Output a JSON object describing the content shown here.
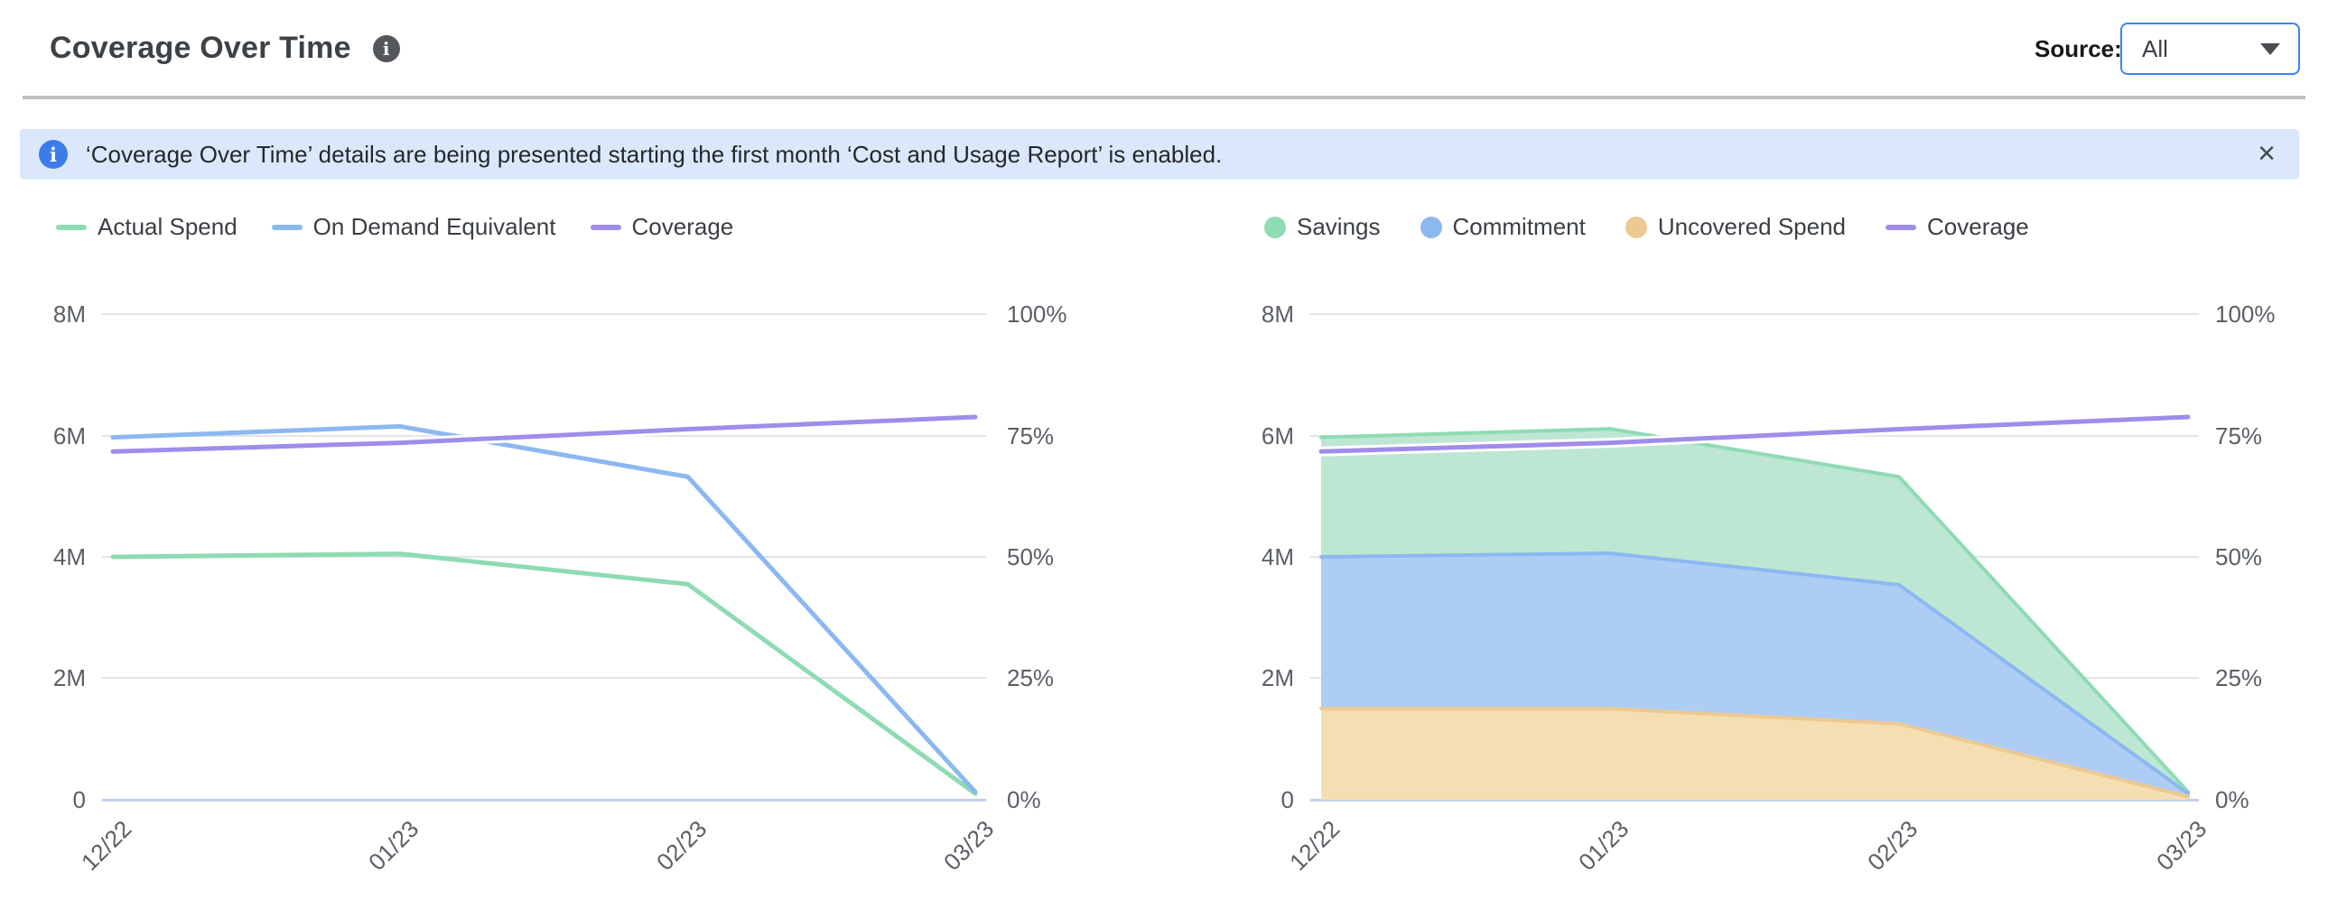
{
  "header": {
    "title": "Coverage Over Time",
    "info_icon": "i",
    "source_label": "Source:",
    "source_value": "All"
  },
  "banner": {
    "icon": "i",
    "text": "‘Coverage Over Time’ details are being presented starting the first month ‘Cost and Usage Report’ is enabled.",
    "close_label": "×"
  },
  "colors": {
    "green_line": "#8edbb4",
    "green_fill": "#bde7d2",
    "blue_line": "#8cb8f1",
    "blue_fill": "#aecdf5",
    "purple_line": "#a08cea",
    "orange_line": "#edc992",
    "orange_fill": "#f5dfb2",
    "banner_bg": "#dbe8fb",
    "banner_icon": "#3d7ce8",
    "dropdown_border": "#3b82f6",
    "gridline": "#e4e4e4",
    "baseline": "#c3cfec"
  },
  "chart_data": [
    {
      "type": "line",
      "title": "",
      "categories": [
        "12/22",
        "01/23",
        "02/23",
        "03/23"
      ],
      "series": [
        {
          "name": "Actual Spend",
          "color": "#8edbb4",
          "values": [
            4.0,
            4.05,
            3.55,
            0.1
          ]
        },
        {
          "name": "On Demand Equivalent",
          "color": "#8cb8f1",
          "values": [
            5.97,
            6.15,
            5.32,
            0.13
          ]
        },
        {
          "name": "Coverage",
          "axis": "right",
          "color": "#a08cea",
          "values": [
            71.7,
            73.5,
            76.3,
            78.8
          ]
        }
      ],
      "left_axis": {
        "unit": "M",
        "max": 8,
        "labels": [
          "8M",
          "6M",
          "4M",
          "2M",
          "0"
        ]
      },
      "right_axis": {
        "unit": "%",
        "max": 100,
        "labels": [
          "100%",
          "75%",
          "50%",
          "25%",
          "0%"
        ]
      },
      "grid": true,
      "legend_position": "top",
      "x_label_rotation": -45
    },
    {
      "type": "area",
      "stacked": true,
      "stack_order": [
        "Uncovered Spend",
        "Commitment",
        "Savings"
      ],
      "title": "",
      "categories": [
        "12/22",
        "01/23",
        "02/23",
        "03/23"
      ],
      "series": [
        {
          "name": "Savings",
          "color": "#8edbb4",
          "fill": "#bde7d2",
          "values": [
            1.97,
            2.05,
            1.78,
            0.03
          ]
        },
        {
          "name": "Commitment",
          "color": "#8cb8f1",
          "fill": "#aecdf5",
          "values": [
            2.5,
            2.56,
            2.29,
            0.05
          ]
        },
        {
          "name": "Uncovered Spend",
          "color": "#edc992",
          "fill": "#f5dfb2",
          "values": [
            1.5,
            1.5,
            1.25,
            0.05
          ]
        },
        {
          "name": "Coverage",
          "axis": "right",
          "color": "#a08cea",
          "values": [
            71.7,
            73.5,
            76.3,
            78.8
          ]
        }
      ],
      "left_axis": {
        "unit": "M",
        "max": 8,
        "labels": [
          "8M",
          "6M",
          "4M",
          "2M",
          "0"
        ]
      },
      "right_axis": {
        "unit": "%",
        "max": 100,
        "labels": [
          "100%",
          "75%",
          "50%",
          "25%",
          "0%"
        ]
      },
      "grid": true,
      "legend_position": "top",
      "x_label_rotation": -45
    }
  ]
}
